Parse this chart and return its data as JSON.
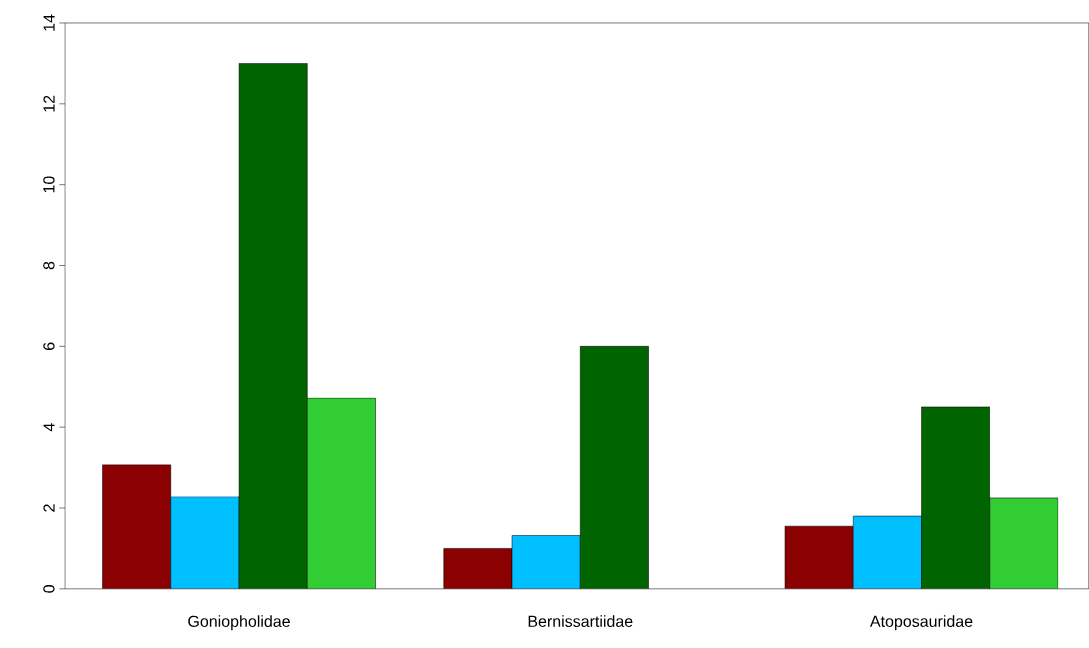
{
  "chart_data": {
    "type": "bar",
    "categories": [
      "Goniopholidae",
      "Bernissartiidae",
      "Atoposauridae"
    ],
    "series": [
      {
        "color": "#8b0000",
        "values": [
          3.07,
          1.0,
          1.55
        ]
      },
      {
        "color": "#00bfff",
        "values": [
          2.28,
          1.32,
          1.8
        ]
      },
      {
        "color": "#006400",
        "values": [
          13.0,
          6.0,
          4.5
        ]
      },
      {
        "color": "#32cd32",
        "values": [
          4.72,
          null,
          2.25
        ]
      }
    ],
    "ylim": [
      0,
      14
    ],
    "yticks": [
      0,
      2,
      4,
      6,
      8,
      10,
      12,
      14
    ],
    "grid": false
  }
}
